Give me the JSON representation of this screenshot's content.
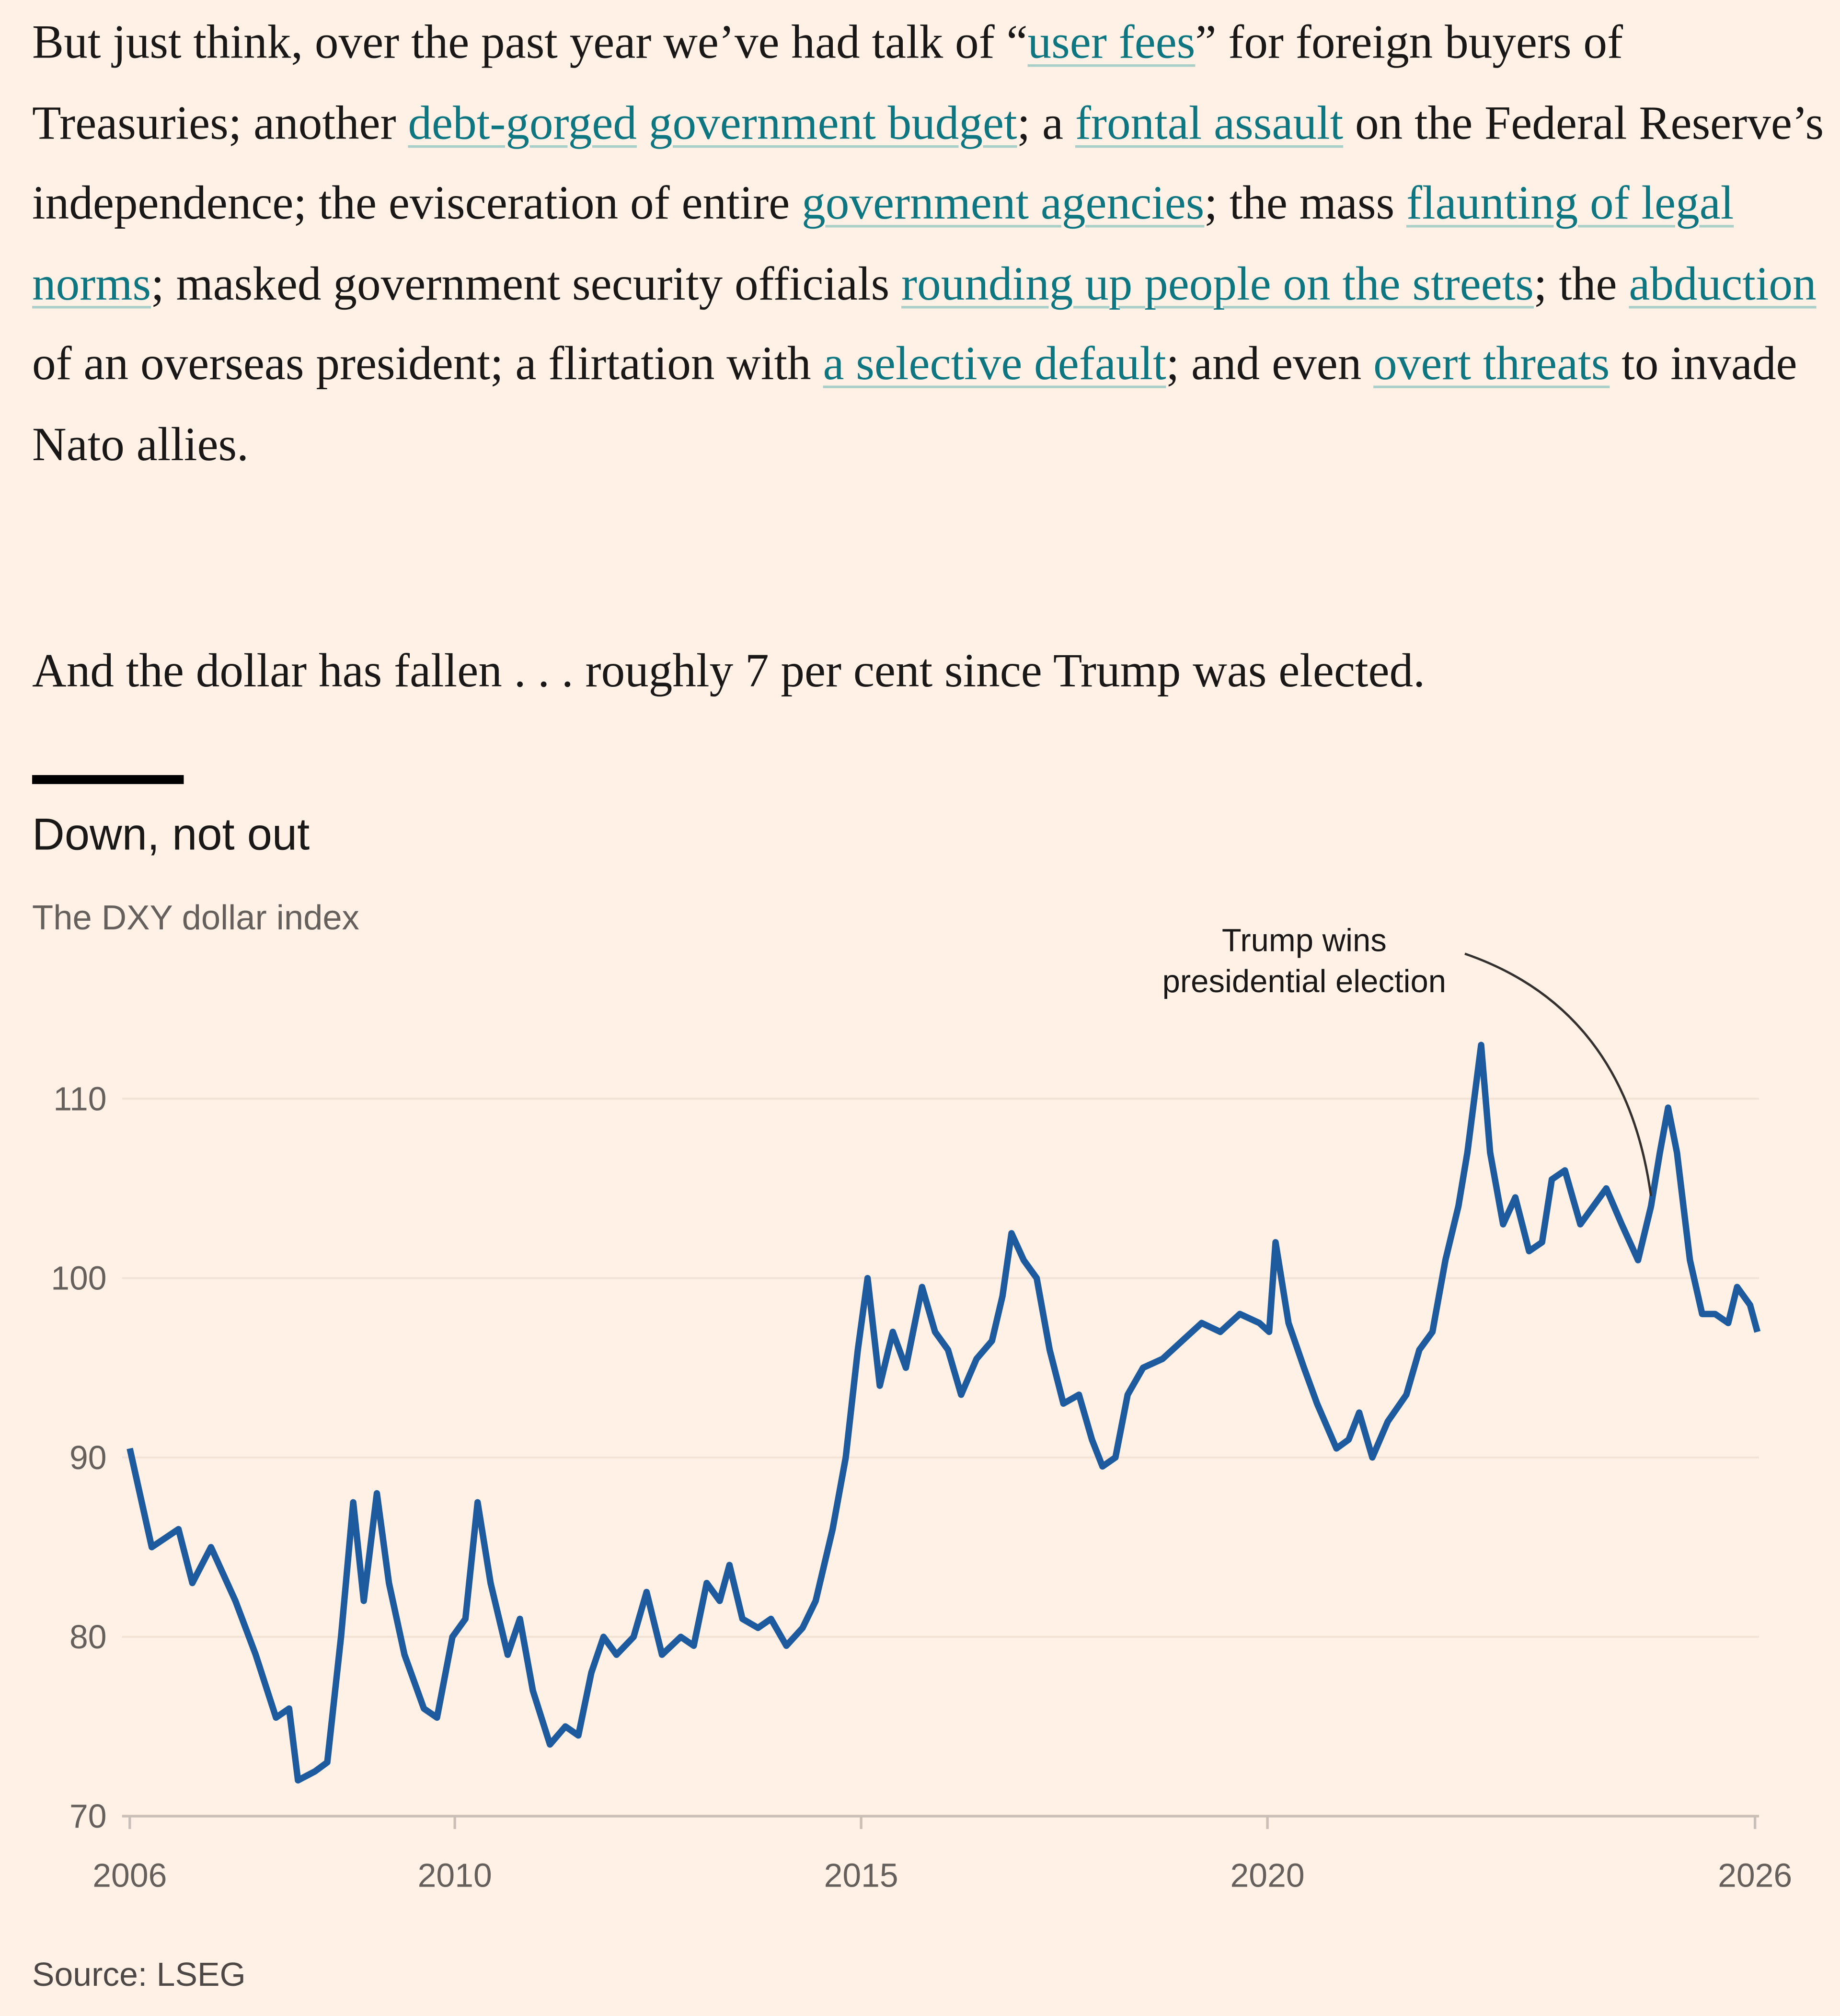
{
  "article": {
    "paragraphs": [
      [
        {
          "text": "But just think, over the past year we’ve had talk of “",
          "link": false
        },
        {
          "text": "user fees",
          "link": true
        },
        {
          "text": "” for foreign buyers of Treasuries; another ",
          "link": false
        },
        {
          "text": "debt-gorged",
          "link": true
        },
        {
          "text": " ",
          "link": false
        },
        {
          "text": "government budget",
          "link": true
        },
        {
          "text": "; a ",
          "link": false
        },
        {
          "text": "frontal assault",
          "link": true
        },
        {
          "text": " on the Federal Reserve’s independence; the evisceration of entire ",
          "link": false
        },
        {
          "text": "government agencies",
          "link": true
        },
        {
          "text": "; the mass ",
          "link": false
        },
        {
          "text": "flaunting of legal norms",
          "link": true
        },
        {
          "text": "; masked government security officials ",
          "link": false
        },
        {
          "text": "rounding up people on the streets",
          "link": true
        },
        {
          "text": "; the ",
          "link": false
        },
        {
          "text": "abduction",
          "link": true
        },
        {
          "text": " of an overseas president; a flirtation with ",
          "link": false
        },
        {
          "text": "a selective default",
          "link": true
        },
        {
          "text": "; and even ",
          "link": false
        },
        {
          "text": "overt threats",
          "link": true
        },
        {
          "text": " to invade Nato allies.",
          "link": false
        }
      ],
      [
        {
          "text": "And the dollar has fallen . . . roughly 7 per cent since Trump was elected.",
          "link": false
        }
      ]
    ]
  },
  "chart_data": {
    "type": "line",
    "title": "Down, not out",
    "subtitle": "The DXY dollar index",
    "source": "Source: LSEG",
    "x": [
      2006,
      2006.27,
      2006.6,
      2006.77,
      2007.0,
      2007.3,
      2007.55,
      2007.8,
      2007.96,
      2008.07,
      2008.28,
      2008.43,
      2008.6,
      2008.75,
      2008.88,
      2009.04,
      2009.19,
      2009.38,
      2009.62,
      2009.78,
      2009.97,
      2010.13,
      2010.28,
      2010.44,
      2010.65,
      2010.8,
      2010.96,
      2011.17,
      2011.36,
      2011.52,
      2011.68,
      2011.83,
      2011.99,
      2012.2,
      2012.36,
      2012.55,
      2012.78,
      2012.94,
      2013.1,
      2013.26,
      2013.38,
      2013.54,
      2013.73,
      2013.89,
      2014.08,
      2014.28,
      2014.44,
      2014.65,
      2014.81,
      2014.96,
      2015.08,
      2015.23,
      2015.39,
      2015.55,
      2015.75,
      2015.91,
      2016.07,
      2016.23,
      2016.42,
      2016.61,
      2016.74,
      2016.85,
      2017.0,
      2017.16,
      2017.32,
      2017.49,
      2017.68,
      2017.84,
      2017.97,
      2018.13,
      2018.28,
      2018.47,
      2018.71,
      2018.95,
      2019.19,
      2019.42,
      2019.66,
      2019.9,
      2020.02,
      2020.1,
      2020.26,
      2020.45,
      2020.61,
      2020.85,
      2021.0,
      2021.13,
      2021.29,
      2021.48,
      2021.71,
      2021.87,
      2022.03,
      2022.19,
      2022.35,
      2022.46,
      2022.63,
      2022.74,
      2022.9,
      2023.05,
      2023.22,
      2023.38,
      2023.5,
      2023.66,
      2023.85,
      2024.01,
      2024.17,
      2024.36,
      2024.56,
      2024.72,
      2024.83,
      2024.93,
      2025.04,
      2025.2,
      2025.35,
      2025.51,
      2025.67,
      2025.78,
      2025.94,
      2026.03
    ],
    "series": [
      {
        "color": "#1d5a9e",
        "values": [
          90.5,
          85,
          86,
          83,
          85,
          82,
          79,
          75.5,
          76,
          72,
          72.5,
          73,
          80,
          87.5,
          82,
          88,
          83,
          79,
          76,
          75.5,
          80,
          81,
          87.5,
          83,
          79,
          81,
          77,
          74,
          75,
          74.5,
          78,
          80,
          79,
          80,
          82.5,
          79,
          80,
          79.5,
          83,
          82,
          84,
          81,
          80.5,
          81,
          79.5,
          80.5,
          82,
          86,
          90,
          96,
          100,
          94,
          97,
          95,
          99.5,
          97,
          96,
          93.5,
          95.5,
          96.5,
          99,
          102.5,
          101,
          100,
          96,
          93,
          93.5,
          91,
          89.5,
          90,
          93.5,
          95,
          95.5,
          96.5,
          97.5,
          97,
          98,
          97.5,
          97,
          102,
          97.5,
          95,
          93,
          90.5,
          91,
          92.5,
          90,
          92,
          93.5,
          96,
          97,
          101,
          104,
          107,
          113,
          107,
          103,
          104.5,
          101.5,
          102,
          105.5,
          106,
          103,
          104,
          105,
          103,
          101,
          104,
          107,
          109.5,
          107,
          101,
          98,
          98,
          97.5,
          99.5,
          98.5,
          97
        ]
      }
    ],
    "xlim": [
      2006,
      2026.05
    ],
    "xticks": [
      2006,
      2010,
      2015,
      2020,
      2026
    ],
    "ylim": [
      70,
      114
    ],
    "yticks": [
      70,
      80,
      90,
      100,
      110
    ],
    "grid": true,
    "annotation": {
      "text": [
        "Trump wins",
        "presidential election"
      ],
      "x": 2024.72,
      "y": 104
    }
  }
}
